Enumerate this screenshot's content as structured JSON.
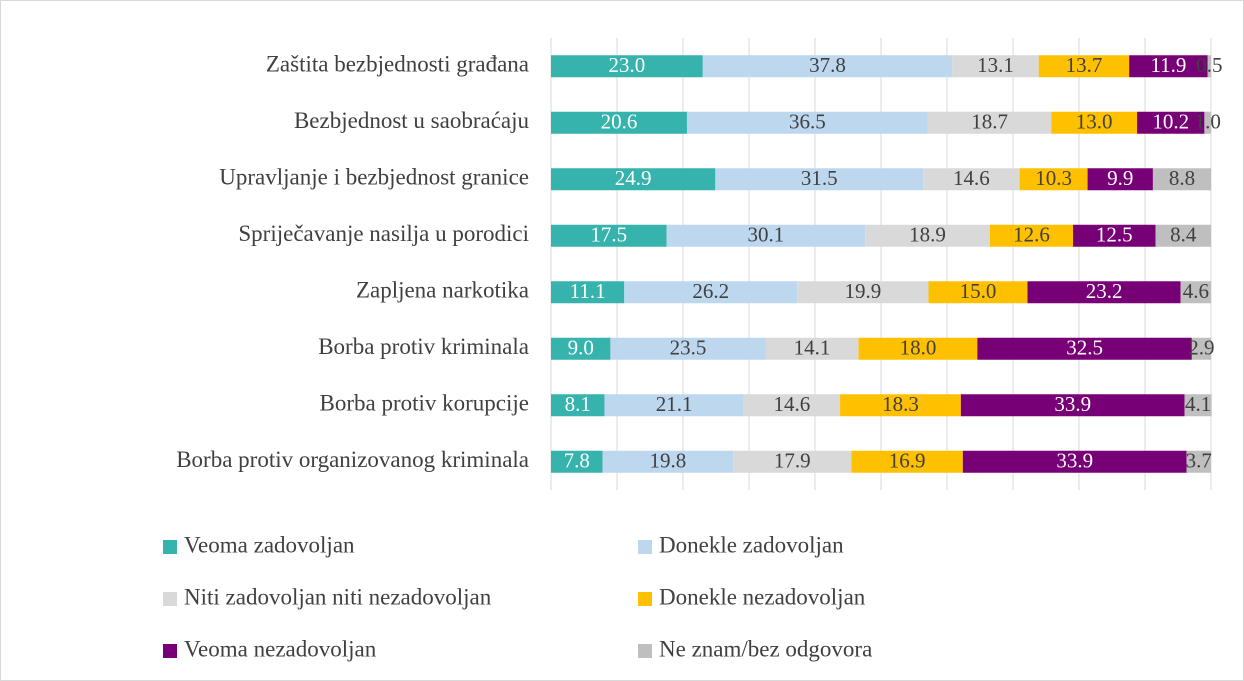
{
  "chart_data": {
    "type": "stacked-bar-horizontal",
    "categories": [
      "Zaštita bezbjednosti građana",
      "Bezbjednost u saobraćaju",
      "Upravljanje i bezbjednost granice",
      "Spriječavanje nasilja u porodici",
      "Zapljena narkotika",
      "Borba protiv kriminala",
      "Borba protiv korupcije",
      "Borba protiv organizovanog kriminala"
    ],
    "series": [
      {
        "name": "Veoma zadovoljan",
        "color": "#36b3ad",
        "label_color": "#ffffff",
        "values": [
          23.0,
          20.6,
          24.9,
          17.5,
          11.1,
          9.0,
          8.1,
          7.8
        ],
        "value_labels": [
          "23.0",
          "20.6",
          "24.9",
          "17.5",
          "11.1",
          "9.0",
          "8.1",
          "7.8"
        ]
      },
      {
        "name": "Donekle zadovoljan",
        "color": "#bdd7ee",
        "label_color": "#404040",
        "values": [
          37.8,
          36.5,
          31.5,
          30.1,
          26.2,
          23.5,
          21.1,
          19.8
        ],
        "value_labels": [
          "37.8",
          "36.5",
          "31.5",
          "30.1",
          "26.2",
          "23.5",
          "21.1",
          "19.8"
        ]
      },
      {
        "name": "Niti zadovoljan niti nezadovoljan",
        "color": "#d9d9d9",
        "label_color": "#404040",
        "values": [
          13.1,
          18.7,
          14.6,
          18.9,
          19.9,
          14.1,
          14.6,
          17.9
        ],
        "value_labels": [
          "13.1",
          "18.7",
          "14.6",
          "18.9",
          "19.9",
          "14.1",
          "14.6",
          "17.9"
        ]
      },
      {
        "name": "Donekle nezadovoljan",
        "color": "#ffc000",
        "label_color": "#404040",
        "values": [
          13.7,
          13.0,
          10.3,
          12.6,
          15.0,
          18.0,
          18.3,
          16.9
        ],
        "value_labels": [
          "13.7",
          "13.0",
          "10.3",
          "12.6",
          "15.0",
          "18.0",
          "18.3",
          "16.9"
        ]
      },
      {
        "name": "Veoma nezadovoljan",
        "color": "#780076",
        "label_color": "#ffffff",
        "values": [
          11.9,
          10.2,
          9.9,
          12.5,
          23.2,
          32.5,
          33.9,
          33.9
        ],
        "value_labels": [
          "11.9",
          "10.2",
          "9.9",
          "12.5",
          "23.2",
          "32.5",
          "33.9",
          "33.9"
        ]
      },
      {
        "name": "Ne znam/bez odgovora",
        "color": "#bfbfbf",
        "label_color": "#404040",
        "values": [
          0.5,
          1.0,
          8.8,
          8.4,
          4.6,
          2.9,
          4.1,
          3.7
        ],
        "value_labels": [
          "0.5",
          "1.0",
          "8.8",
          "8.4",
          "4.6",
          "2.9",
          "4.1",
          "3.7"
        ]
      }
    ],
    "xlim": [
      0,
      100
    ],
    "xticks": [
      0,
      10,
      20,
      30,
      40,
      50,
      60,
      70,
      80,
      90,
      100
    ],
    "grid": true,
    "legend": "bottom"
  }
}
